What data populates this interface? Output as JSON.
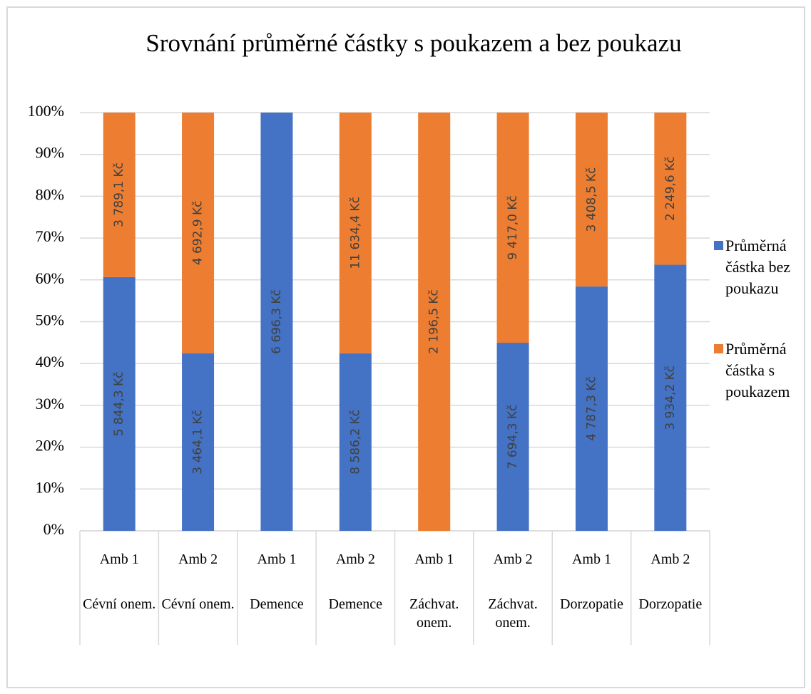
{
  "chart_data": {
    "type": "bar",
    "stacking": "percent",
    "title": "Srovnání průměrné částky s poukazem a bez poukazu",
    "categories": [
      "Amb 1",
      "Amb 2",
      "Amb 1",
      "Amb 2",
      "Amb 1",
      "Amb 2",
      "Amb 1",
      "Amb 2"
    ],
    "groups": [
      "Cévní onem.",
      "Cévní onem.",
      "Demence",
      "Demence",
      "Záchvat. onem.",
      "Záchvat. onem.",
      "Dorzopatie",
      "Dorzopatie"
    ],
    "series": [
      {
        "name": "Průměrná částka bez poukazu",
        "color": "#4472c4",
        "values": [
          5844.3,
          3464.1,
          6696.3,
          8586.2,
          0,
          7694.3,
          4787.3,
          3934.2
        ],
        "value_labels": [
          "5 844,3 Kč",
          "3 464,1 Kč",
          "6 696,3 Kč",
          "8 586,2 Kč",
          null,
          "7 694,3 Kč",
          "4 787,3 Kč",
          "3 934,2 Kč"
        ]
      },
      {
        "name": "Průměrná částka s poukazem",
        "color": "#ed7d31",
        "values": [
          3789.1,
          4692.9,
          0,
          11634.4,
          2196.5,
          9417.0,
          3408.5,
          2249.6
        ],
        "value_labels": [
          "3 789,1 Kč",
          "4 692,9 Kč",
          null,
          "11 634,4 Kč",
          "2 196,5 Kč",
          "9 417,0 Kč",
          "3 408,5 Kč",
          "2 249,6 Kč"
        ]
      }
    ],
    "ylim": [
      0,
      100
    ],
    "yticks": [
      {
        "value": 0,
        "label": "0%"
      },
      {
        "value": 10,
        "label": "10%"
      },
      {
        "value": 20,
        "label": "20%"
      },
      {
        "value": 30,
        "label": "30%"
      },
      {
        "value": 40,
        "label": "40%"
      },
      {
        "value": 50,
        "label": "50%"
      },
      {
        "value": 60,
        "label": "60%"
      },
      {
        "value": 70,
        "label": "70%"
      },
      {
        "value": 80,
        "label": "80%"
      },
      {
        "value": 90,
        "label": "90%"
      },
      {
        "value": 100,
        "label": "100%"
      }
    ],
    "grid": true,
    "legend": "right"
  }
}
